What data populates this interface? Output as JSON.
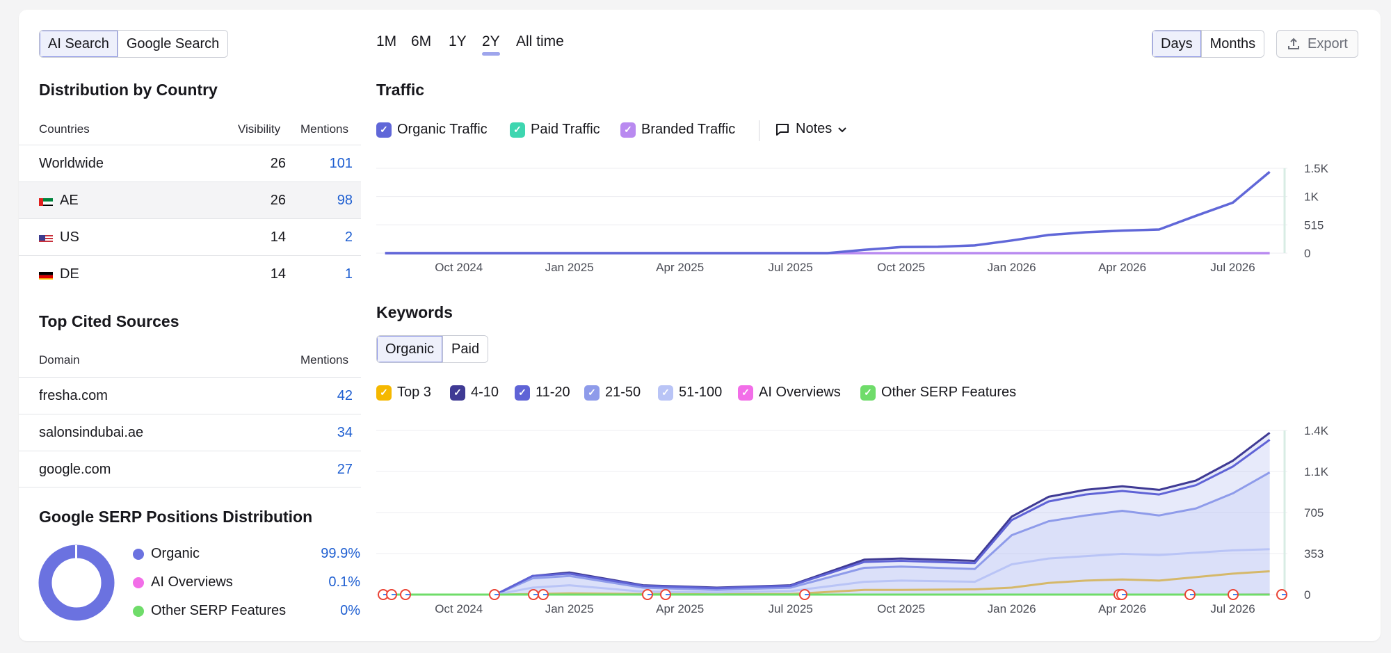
{
  "mode_tabs": [
    {
      "label": "AI Search",
      "active": true
    },
    {
      "label": "Google Search",
      "active": false
    }
  ],
  "ranges": [
    {
      "label": "1M"
    },
    {
      "label": "6M"
    },
    {
      "label": "1Y"
    },
    {
      "label": "2Y",
      "active": true
    },
    {
      "label": "All time"
    }
  ],
  "granularity": [
    {
      "label": "Days",
      "active": true
    },
    {
      "label": "Months",
      "active": false
    }
  ],
  "export_label": "Export",
  "country": {
    "title": "Distribution by Country",
    "headers": {
      "country": "Countries",
      "visibility": "Visibility",
      "mentions": "Mentions"
    },
    "rows": [
      {
        "name": "Worldwide",
        "visibility": "26",
        "mentions": "101",
        "flag": ""
      },
      {
        "name": "AE",
        "visibility": "26",
        "mentions": "98",
        "flag": "ae"
      },
      {
        "name": "US",
        "visibility": "14",
        "mentions": "2",
        "flag": "us"
      },
      {
        "name": "DE",
        "visibility": "14",
        "mentions": "1",
        "flag": "de"
      }
    ]
  },
  "sources": {
    "title": "Top Cited Sources",
    "headers": {
      "domain": "Domain",
      "mentions": "Mentions"
    },
    "rows": [
      {
        "domain": "fresha.com",
        "mentions": "42"
      },
      {
        "domain": "salonsindubai.ae",
        "mentions": "34"
      },
      {
        "domain": "google.com",
        "mentions": "27"
      }
    ]
  },
  "serp": {
    "title": "Google SERP Positions Distribution",
    "items": [
      {
        "label": "Organic",
        "value": "99.9%",
        "color": "#6b72e0"
      },
      {
        "label": "AI Overviews",
        "value": "0.1%",
        "color": "#f26ee8"
      },
      {
        "label": "Other SERP Features",
        "value": "0%",
        "color": "#6fdc6a"
      }
    ]
  },
  "traffic": {
    "title": "Traffic",
    "legend": [
      {
        "label": "Organic Traffic",
        "color": "#6067d8"
      },
      {
        "label": "Paid Traffic",
        "color": "#3ed6b0"
      },
      {
        "label": "Branded Traffic",
        "color": "#b98af0"
      }
    ],
    "notes_label": "Notes"
  },
  "keywords": {
    "title": "Keywords",
    "tabs": [
      {
        "label": "Organic",
        "active": true
      },
      {
        "label": "Paid",
        "active": false
      }
    ],
    "legend": [
      {
        "label": "Top 3",
        "color": "#f5b800"
      },
      {
        "label": "4-10",
        "color": "#3f3a94"
      },
      {
        "label": "11-20",
        "color": "#5f63d6"
      },
      {
        "label": "21-50",
        "color": "#8e9bea"
      },
      {
        "label": "51-100",
        "color": "#b9c4f6"
      },
      {
        "label": "AI Overviews",
        "color": "#f26ee8"
      },
      {
        "label": "Other SERP Features",
        "color": "#6fdc6a"
      }
    ]
  },
  "chart_data": [
    {
      "type": "line",
      "title": "Traffic",
      "x_ticks": [
        "Oct 2024",
        "Jan 2025",
        "Apr 2025",
        "Jul 2025",
        "Oct 2025",
        "Jan 2026",
        "Apr 2026",
        "Jul 2026"
      ],
      "y_ticks": [
        "0",
        "515",
        "1K",
        "1.5K"
      ],
      "ylim": [
        0,
        1545
      ],
      "x": [
        "2024-08",
        "2025-08",
        "2025-09",
        "2025-10",
        "2025-11",
        "2025-12",
        "2026-01",
        "2026-02",
        "2026-03",
        "2026-04",
        "2026-05",
        "2026-06",
        "2026-07",
        "2026-08"
      ],
      "series": [
        {
          "name": "Organic Traffic",
          "values": [
            0,
            0,
            60,
            110,
            115,
            140,
            230,
            330,
            380,
            410,
            430,
            680,
            920,
            1480
          ]
        },
        {
          "name": "Branded Traffic",
          "values": [
            0,
            0,
            0,
            0,
            0,
            0,
            0,
            0,
            0,
            0,
            0,
            0,
            0,
            0
          ]
        }
      ]
    },
    {
      "type": "area",
      "title": "Keywords",
      "x_ticks": [
        "Oct 2024",
        "Jan 2025",
        "Apr 2025",
        "Jul 2025",
        "Oct 2025",
        "Jan 2026",
        "Apr 2026",
        "Jul 2026"
      ],
      "y_ticks": [
        "0",
        "353",
        "705",
        "1.1K",
        "1.4K"
      ],
      "ylim": [
        0,
        1410
      ],
      "x": [
        "2024-08",
        "2024-11",
        "2024-12",
        "2025-01",
        "2025-03",
        "2025-05",
        "2025-07",
        "2025-09",
        "2025-10",
        "2025-12",
        "2026-01",
        "2026-02",
        "2026-03",
        "2026-04",
        "2026-05",
        "2026-06",
        "2026-07",
        "2026-08"
      ],
      "series": [
        {
          "name": "Top 3",
          "values": [
            0,
            0,
            5,
            10,
            5,
            5,
            5,
            40,
            40,
            45,
            60,
            100,
            120,
            130,
            120,
            150,
            180,
            200
          ]
        },
        {
          "name": "4-10",
          "values": [
            0,
            0,
            160,
            190,
            80,
            60,
            80,
            300,
            310,
            290,
            670,
            840,
            900,
            930,
            900,
            980,
            1150,
            1390
          ]
        },
        {
          "name": "11-20",
          "values": [
            0,
            0,
            160,
            180,
            75,
            55,
            75,
            280,
            290,
            270,
            640,
            800,
            860,
            890,
            860,
            940,
            1100,
            1330
          ]
        },
        {
          "name": "21-50",
          "values": [
            0,
            0,
            140,
            160,
            60,
            40,
            60,
            230,
            240,
            220,
            510,
            630,
            680,
            720,
            680,
            740,
            870,
            1050
          ]
        },
        {
          "name": "51-100",
          "values": [
            0,
            0,
            60,
            80,
            25,
            20,
            30,
            110,
            120,
            110,
            260,
            310,
            330,
            350,
            340,
            360,
            380,
            390
          ]
        },
        {
          "name": "AI Overviews",
          "values": [
            0,
            0,
            0,
            0,
            0,
            0,
            0,
            0,
            0,
            0,
            0,
            0,
            0,
            0,
            0,
            0,
            0,
            2
          ]
        },
        {
          "name": "Other SERP Features",
          "values": [
            0,
            0,
            0,
            0,
            0,
            0,
            0,
            0,
            0,
            0,
            0,
            0,
            0,
            0,
            0,
            0,
            0,
            0
          ]
        }
      ]
    }
  ]
}
